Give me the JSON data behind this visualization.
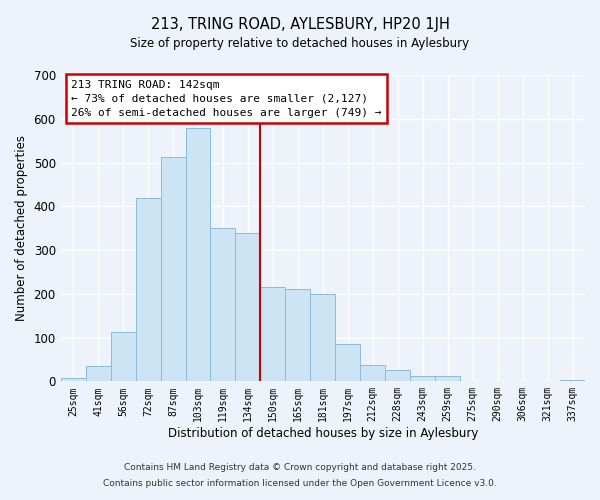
{
  "title": "213, TRING ROAD, AYLESBURY, HP20 1JH",
  "subtitle": "Size of property relative to detached houses in Aylesbury",
  "xlabel": "Distribution of detached houses by size in Aylesbury",
  "ylabel": "Number of detached properties",
  "footer_lines": [
    "Contains HM Land Registry data © Crown copyright and database right 2025.",
    "Contains public sector information licensed under the Open Government Licence v3.0."
  ],
  "categories": [
    "25sqm",
    "41sqm",
    "56sqm",
    "72sqm",
    "87sqm",
    "103sqm",
    "119sqm",
    "134sqm",
    "150sqm",
    "165sqm",
    "181sqm",
    "197sqm",
    "212sqm",
    "228sqm",
    "243sqm",
    "259sqm",
    "275sqm",
    "290sqm",
    "306sqm",
    "321sqm",
    "337sqm"
  ],
  "values": [
    8,
    35,
    113,
    420,
    513,
    580,
    350,
    338,
    215,
    210,
    200,
    85,
    37,
    27,
    12,
    13,
    0,
    0,
    0,
    0,
    3
  ],
  "bar_color": "#cce4f4",
  "bar_edge_color": "#8bbbd8",
  "background_color": "#eef2fb",
  "grid_color": "#ffffff",
  "annotation_box_text": "213 TRING ROAD: 142sqm",
  "annotation_line1": "← 73% of detached houses are smaller (2,127)",
  "annotation_line2": "26% of semi-detached houses are larger (749) →",
  "vline_x_index": 7.5,
  "vline_color": "#cc0000",
  "annotation_box_edgecolor": "#cc0000",
  "ylim": [
    0,
    700
  ],
  "yticks": [
    0,
    100,
    200,
    300,
    400,
    500,
    600,
    700
  ]
}
